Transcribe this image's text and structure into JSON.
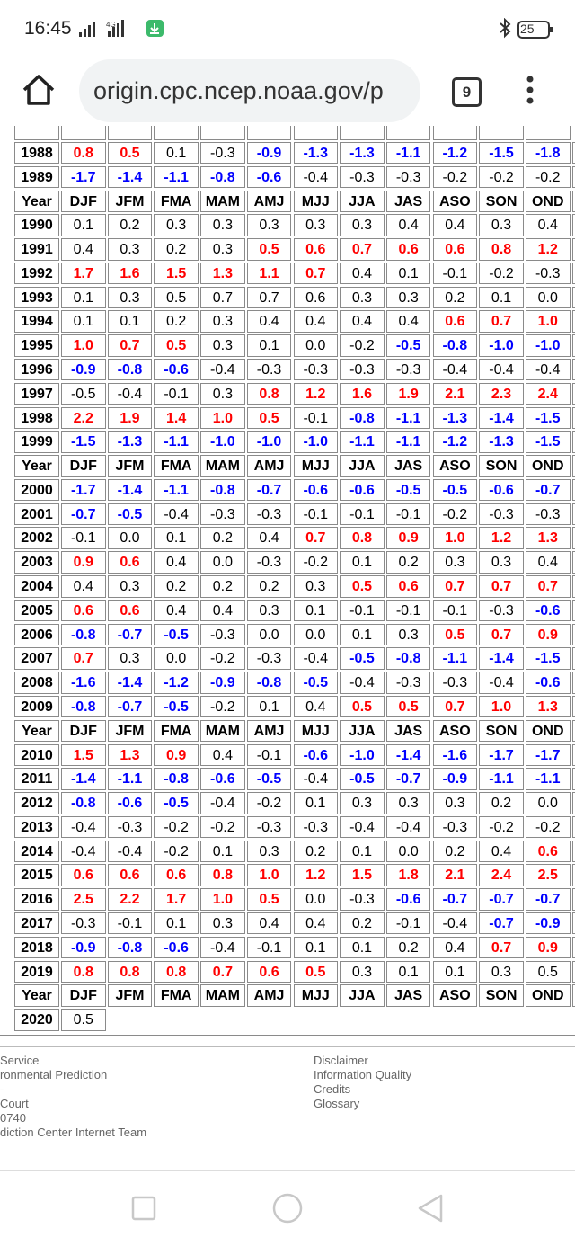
{
  "status": {
    "time": "16:45",
    "battery": "25"
  },
  "browser": {
    "url": "origin.cpc.ncep.noaa.gov/p",
    "tabs": "9"
  },
  "table": {
    "columns": [
      "Year",
      "DJF",
      "JFM",
      "FMA",
      "MAM",
      "AMJ",
      "MJJ",
      "JJA",
      "JAS",
      "ASO",
      "SON",
      "OND"
    ],
    "palette": {
      "w": "#ff0000",
      "c": "#0000ff",
      "n": "#000000"
    },
    "decades": [
      {
        "rows": [
          {
            "year": "1988",
            "values": [
              "0.8",
              "0.5",
              "0.1",
              "-0.3",
              "-0.9",
              "-1.3",
              "-1.3",
              "-1.1",
              "-1.2",
              "-1.5",
              "-1.8"
            ],
            "colors": [
              "w",
              "w",
              "n",
              "n",
              "c",
              "c",
              "c",
              "c",
              "c",
              "c",
              "c"
            ]
          },
          {
            "year": "1989",
            "values": [
              "-1.7",
              "-1.4",
              "-1.1",
              "-0.8",
              "-0.6",
              "-0.4",
              "-0.3",
              "-0.3",
              "-0.2",
              "-0.2",
              "-0.2"
            ],
            "colors": [
              "c",
              "c",
              "c",
              "c",
              "c",
              "n",
              "n",
              "n",
              "n",
              "n",
              "n"
            ]
          }
        ]
      },
      {
        "rows": [
          {
            "year": "1990",
            "values": [
              "0.1",
              "0.2",
              "0.3",
              "0.3",
              "0.3",
              "0.3",
              "0.3",
              "0.4",
              "0.4",
              "0.3",
              "0.4"
            ],
            "colors": [
              "n",
              "n",
              "n",
              "n",
              "n",
              "n",
              "n",
              "n",
              "n",
              "n",
              "n"
            ]
          },
          {
            "year": "1991",
            "values": [
              "0.4",
              "0.3",
              "0.2",
              "0.3",
              "0.5",
              "0.6",
              "0.7",
              "0.6",
              "0.6",
              "0.8",
              "1.2"
            ],
            "colors": [
              "n",
              "n",
              "n",
              "n",
              "w",
              "w",
              "w",
              "w",
              "w",
              "w",
              "w"
            ]
          },
          {
            "year": "1992",
            "values": [
              "1.7",
              "1.6",
              "1.5",
              "1.3",
              "1.1",
              "0.7",
              "0.4",
              "0.1",
              "-0.1",
              "-0.2",
              "-0.3"
            ],
            "colors": [
              "w",
              "w",
              "w",
              "w",
              "w",
              "w",
              "n",
              "n",
              "n",
              "n",
              "n"
            ]
          },
          {
            "year": "1993",
            "values": [
              "0.1",
              "0.3",
              "0.5",
              "0.7",
              "0.7",
              "0.6",
              "0.3",
              "0.3",
              "0.2",
              "0.1",
              "0.0"
            ],
            "colors": [
              "n",
              "n",
              "n",
              "n",
              "n",
              "n",
              "n",
              "n",
              "n",
              "n",
              "n"
            ]
          },
          {
            "year": "1994",
            "values": [
              "0.1",
              "0.1",
              "0.2",
              "0.3",
              "0.4",
              "0.4",
              "0.4",
              "0.4",
              "0.6",
              "0.7",
              "1.0"
            ],
            "colors": [
              "n",
              "n",
              "n",
              "n",
              "n",
              "n",
              "n",
              "n",
              "w",
              "w",
              "w"
            ]
          },
          {
            "year": "1995",
            "values": [
              "1.0",
              "0.7",
              "0.5",
              "0.3",
              "0.1",
              "0.0",
              "-0.2",
              "-0.5",
              "-0.8",
              "-1.0",
              "-1.0"
            ],
            "colors": [
              "w",
              "w",
              "w",
              "n",
              "n",
              "n",
              "n",
              "c",
              "c",
              "c",
              "c"
            ]
          },
          {
            "year": "1996",
            "values": [
              "-0.9",
              "-0.8",
              "-0.6",
              "-0.4",
              "-0.3",
              "-0.3",
              "-0.3",
              "-0.3",
              "-0.4",
              "-0.4",
              "-0.4"
            ],
            "colors": [
              "c",
              "c",
              "c",
              "n",
              "n",
              "n",
              "n",
              "n",
              "n",
              "n",
              "n"
            ]
          },
          {
            "year": "1997",
            "values": [
              "-0.5",
              "-0.4",
              "-0.1",
              "0.3",
              "0.8",
              "1.2",
              "1.6",
              "1.9",
              "2.1",
              "2.3",
              "2.4"
            ],
            "colors": [
              "n",
              "n",
              "n",
              "n",
              "w",
              "w",
              "w",
              "w",
              "w",
              "w",
              "w"
            ]
          },
          {
            "year": "1998",
            "values": [
              "2.2",
              "1.9",
              "1.4",
              "1.0",
              "0.5",
              "-0.1",
              "-0.8",
              "-1.1",
              "-1.3",
              "-1.4",
              "-1.5"
            ],
            "colors": [
              "w",
              "w",
              "w",
              "w",
              "w",
              "n",
              "c",
              "c",
              "c",
              "c",
              "c"
            ]
          },
          {
            "year": "1999",
            "values": [
              "-1.5",
              "-1.3",
              "-1.1",
              "-1.0",
              "-1.0",
              "-1.0",
              "-1.1",
              "-1.1",
              "-1.2",
              "-1.3",
              "-1.5"
            ],
            "colors": [
              "c",
              "c",
              "c",
              "c",
              "c",
              "c",
              "c",
              "c",
              "c",
              "c",
              "c"
            ]
          }
        ]
      },
      {
        "rows": [
          {
            "year": "2000",
            "values": [
              "-1.7",
              "-1.4",
              "-1.1",
              "-0.8",
              "-0.7",
              "-0.6",
              "-0.6",
              "-0.5",
              "-0.5",
              "-0.6",
              "-0.7"
            ],
            "colors": [
              "c",
              "c",
              "c",
              "c",
              "c",
              "c",
              "c",
              "c",
              "c",
              "c",
              "c"
            ]
          },
          {
            "year": "2001",
            "values": [
              "-0.7",
              "-0.5",
              "-0.4",
              "-0.3",
              "-0.3",
              "-0.1",
              "-0.1",
              "-0.1",
              "-0.2",
              "-0.3",
              "-0.3"
            ],
            "colors": [
              "c",
              "c",
              "n",
              "n",
              "n",
              "n",
              "n",
              "n",
              "n",
              "n",
              "n"
            ]
          },
          {
            "year": "2002",
            "values": [
              "-0.1",
              "0.0",
              "0.1",
              "0.2",
              "0.4",
              "0.7",
              "0.8",
              "0.9",
              "1.0",
              "1.2",
              "1.3"
            ],
            "colors": [
              "n",
              "n",
              "n",
              "n",
              "n",
              "w",
              "w",
              "w",
              "w",
              "w",
              "w"
            ]
          },
          {
            "year": "2003",
            "values": [
              "0.9",
              "0.6",
              "0.4",
              "0.0",
              "-0.3",
              "-0.2",
              "0.1",
              "0.2",
              "0.3",
              "0.3",
              "0.4"
            ],
            "colors": [
              "w",
              "w",
              "n",
              "n",
              "n",
              "n",
              "n",
              "n",
              "n",
              "n",
              "n"
            ]
          },
          {
            "year": "2004",
            "values": [
              "0.4",
              "0.3",
              "0.2",
              "0.2",
              "0.2",
              "0.3",
              "0.5",
              "0.6",
              "0.7",
              "0.7",
              "0.7"
            ],
            "colors": [
              "n",
              "n",
              "n",
              "n",
              "n",
              "n",
              "w",
              "w",
              "w",
              "w",
              "w"
            ]
          },
          {
            "year": "2005",
            "values": [
              "0.6",
              "0.6",
              "0.4",
              "0.4",
              "0.3",
              "0.1",
              "-0.1",
              "-0.1",
              "-0.1",
              "-0.3",
              "-0.6"
            ],
            "colors": [
              "w",
              "w",
              "n",
              "n",
              "n",
              "n",
              "n",
              "n",
              "n",
              "n",
              "c"
            ]
          },
          {
            "year": "2006",
            "values": [
              "-0.8",
              "-0.7",
              "-0.5",
              "-0.3",
              "0.0",
              "0.0",
              "0.1",
              "0.3",
              "0.5",
              "0.7",
              "0.9"
            ],
            "colors": [
              "c",
              "c",
              "c",
              "n",
              "n",
              "n",
              "n",
              "n",
              "w",
              "w",
              "w"
            ]
          },
          {
            "year": "2007",
            "values": [
              "0.7",
              "0.3",
              "0.0",
              "-0.2",
              "-0.3",
              "-0.4",
              "-0.5",
              "-0.8",
              "-1.1",
              "-1.4",
              "-1.5"
            ],
            "colors": [
              "w",
              "n",
              "n",
              "n",
              "n",
              "n",
              "c",
              "c",
              "c",
              "c",
              "c"
            ]
          },
          {
            "year": "2008",
            "values": [
              "-1.6",
              "-1.4",
              "-1.2",
              "-0.9",
              "-0.8",
              "-0.5",
              "-0.4",
              "-0.3",
              "-0.3",
              "-0.4",
              "-0.6"
            ],
            "colors": [
              "c",
              "c",
              "c",
              "c",
              "c",
              "c",
              "n",
              "n",
              "n",
              "n",
              "c"
            ]
          },
          {
            "year": "2009",
            "values": [
              "-0.8",
              "-0.7",
              "-0.5",
              "-0.2",
              "0.1",
              "0.4",
              "0.5",
              "0.5",
              "0.7",
              "1.0",
              "1.3"
            ],
            "colors": [
              "c",
              "c",
              "c",
              "n",
              "n",
              "n",
              "w",
              "w",
              "w",
              "w",
              "w"
            ]
          }
        ]
      },
      {
        "rows": [
          {
            "year": "2010",
            "values": [
              "1.5",
              "1.3",
              "0.9",
              "0.4",
              "-0.1",
              "-0.6",
              "-1.0",
              "-1.4",
              "-1.6",
              "-1.7",
              "-1.7"
            ],
            "colors": [
              "w",
              "w",
              "w",
              "n",
              "n",
              "c",
              "c",
              "c",
              "c",
              "c",
              "c"
            ]
          },
          {
            "year": "2011",
            "values": [
              "-1.4",
              "-1.1",
              "-0.8",
              "-0.6",
              "-0.5",
              "-0.4",
              "-0.5",
              "-0.7",
              "-0.9",
              "-1.1",
              "-1.1"
            ],
            "colors": [
              "c",
              "c",
              "c",
              "c",
              "c",
              "n",
              "c",
              "c",
              "c",
              "c",
              "c"
            ]
          },
          {
            "year": "2012",
            "values": [
              "-0.8",
              "-0.6",
              "-0.5",
              "-0.4",
              "-0.2",
              "0.1",
              "0.3",
              "0.3",
              "0.3",
              "0.2",
              "0.0"
            ],
            "colors": [
              "c",
              "c",
              "c",
              "n",
              "n",
              "n",
              "n",
              "n",
              "n",
              "n",
              "n"
            ]
          },
          {
            "year": "2013",
            "values": [
              "-0.4",
              "-0.3",
              "-0.2",
              "-0.2",
              "-0.3",
              "-0.3",
              "-0.4",
              "-0.4",
              "-0.3",
              "-0.2",
              "-0.2"
            ],
            "colors": [
              "n",
              "n",
              "n",
              "n",
              "n",
              "n",
              "n",
              "n",
              "n",
              "n",
              "n"
            ]
          },
          {
            "year": "2014",
            "values": [
              "-0.4",
              "-0.4",
              "-0.2",
              "0.1",
              "0.3",
              "0.2",
              "0.1",
              "0.0",
              "0.2",
              "0.4",
              "0.6"
            ],
            "colors": [
              "n",
              "n",
              "n",
              "n",
              "n",
              "n",
              "n",
              "n",
              "n",
              "n",
              "w"
            ]
          },
          {
            "year": "2015",
            "values": [
              "0.6",
              "0.6",
              "0.6",
              "0.8",
              "1.0",
              "1.2",
              "1.5",
              "1.8",
              "2.1",
              "2.4",
              "2.5"
            ],
            "colors": [
              "w",
              "w",
              "w",
              "w",
              "w",
              "w",
              "w",
              "w",
              "w",
              "w",
              "w"
            ]
          },
          {
            "year": "2016",
            "values": [
              "2.5",
              "2.2",
              "1.7",
              "1.0",
              "0.5",
              "0.0",
              "-0.3",
              "-0.6",
              "-0.7",
              "-0.7",
              "-0.7"
            ],
            "colors": [
              "w",
              "w",
              "w",
              "w",
              "w",
              "n",
              "n",
              "c",
              "c",
              "c",
              "c"
            ]
          },
          {
            "year": "2017",
            "values": [
              "-0.3",
              "-0.1",
              "0.1",
              "0.3",
              "0.4",
              "0.4",
              "0.2",
              "-0.1",
              "-0.4",
              "-0.7",
              "-0.9"
            ],
            "colors": [
              "n",
              "n",
              "n",
              "n",
              "n",
              "n",
              "n",
              "n",
              "n",
              "c",
              "c"
            ]
          },
          {
            "year": "2018",
            "values": [
              "-0.9",
              "-0.8",
              "-0.6",
              "-0.4",
              "-0.1",
              "0.1",
              "0.1",
              "0.2",
              "0.4",
              "0.7",
              "0.9"
            ],
            "colors": [
              "c",
              "c",
              "c",
              "n",
              "n",
              "n",
              "n",
              "n",
              "n",
              "w",
              "w"
            ]
          },
          {
            "year": "2019",
            "values": [
              "0.8",
              "0.8",
              "0.8",
              "0.7",
              "0.6",
              "0.5",
              "0.3",
              "0.1",
              "0.1",
              "0.3",
              "0.5"
            ],
            "colors": [
              "w",
              "w",
              "w",
              "w",
              "w",
              "w",
              "n",
              "n",
              "n",
              "n",
              "n"
            ]
          }
        ]
      },
      {
        "rows": [
          {
            "year": "2020",
            "values": [
              "0.5"
            ],
            "colors": [
              "n"
            ]
          }
        ]
      }
    ]
  },
  "footer": {
    "left": [
      "Service",
      "ronmental Prediction",
      "-",
      "Court",
      "0740",
      "diction Center Internet Team"
    ],
    "right": [
      "Disclaimer",
      "Information Quality",
      "Credits",
      "Glossary"
    ]
  }
}
